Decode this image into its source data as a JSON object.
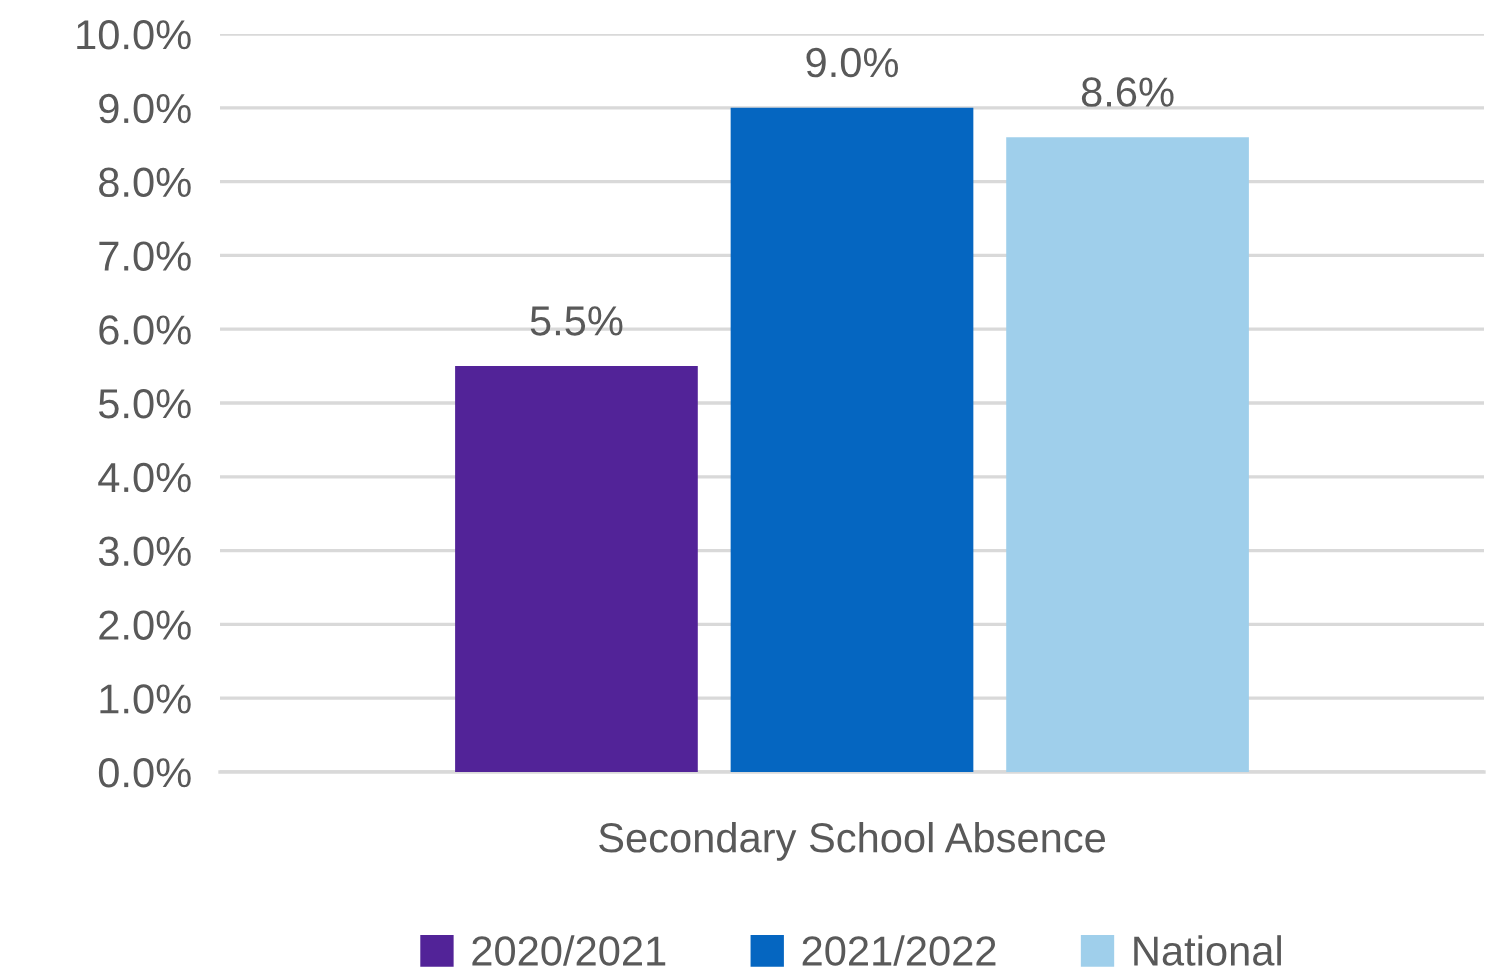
{
  "chart_data": {
    "type": "bar",
    "categories": [
      "Secondary School Absence"
    ],
    "series": [
      {
        "name": "2020/2021",
        "color": "#522398",
        "values": [
          5.5
        ],
        "value_labels": [
          "5.5%"
        ]
      },
      {
        "name": "2021/2022",
        "color": "#0566c1",
        "values": [
          9.0
        ],
        "value_labels": [
          "9.0%"
        ]
      },
      {
        "name": "National",
        "color": "#9fcfeb",
        "values": [
          8.6
        ],
        "value_labels": [
          "8.6%"
        ]
      }
    ],
    "ylim": [
      0,
      10
    ],
    "yticks": [
      {
        "value": 0,
        "label": "0.0%"
      },
      {
        "value": 1,
        "label": "1.0%"
      },
      {
        "value": 2,
        "label": "2.0%"
      },
      {
        "value": 3,
        "label": "3.0%"
      },
      {
        "value": 4,
        "label": "4.0%"
      },
      {
        "value": 5,
        "label": "5.0%"
      },
      {
        "value": 6,
        "label": "6.0%"
      },
      {
        "value": 7,
        "label": "7.0%"
      },
      {
        "value": 8,
        "label": "8.0%"
      },
      {
        "value": 9,
        "label": "9.0%"
      },
      {
        "value": 10,
        "label": "10.0%"
      }
    ],
    "grid": "y",
    "legend": "bottom"
  }
}
